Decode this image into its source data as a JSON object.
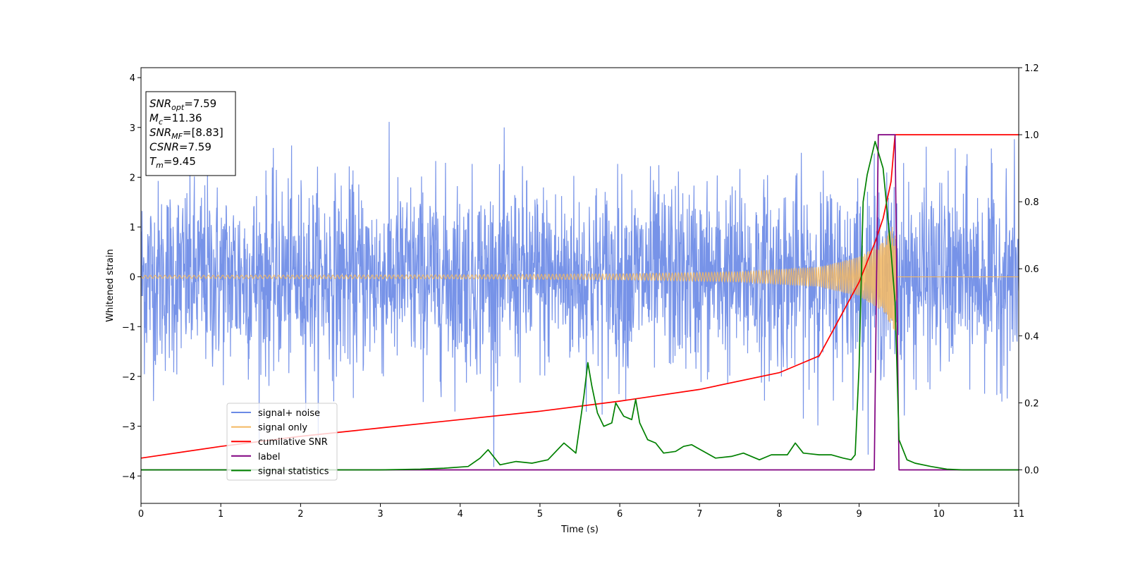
{
  "chart_data": {
    "type": "line",
    "xlabel": "Time (s)",
    "ylabel": "Whitened strain",
    "xlim": [
      0,
      11
    ],
    "ylim": [
      -4.55,
      4.2
    ],
    "y2lim": [
      -0.1,
      1.2
    ],
    "xticks": [
      "0",
      "1",
      "2",
      "3",
      "4",
      "5",
      "6",
      "7",
      "8",
      "9",
      "10",
      "11"
    ],
    "yticks": [
      "−4",
      "−3",
      "−2",
      "−1",
      "0",
      "1",
      "2",
      "3",
      "4"
    ],
    "y2ticks": [
      "0.0",
      "0.2",
      "0.4",
      "0.6",
      "0.8",
      "1.0",
      "1.2"
    ],
    "grid": false,
    "legend_placement": "lower-left",
    "stats_box": {
      "placement": "upper-left",
      "lines": [
        {
          "sym": "SNR",
          "sub": "opt",
          "val": "=7.59"
        },
        {
          "sym": "M",
          "sub": "c",
          "val": "=11.36"
        },
        {
          "sym": "SNR",
          "sub": "MF",
          "val": "=[8.83]"
        },
        {
          "sym": "CSNR",
          "sub": "",
          "val": "=7.59"
        },
        {
          "sym": "T",
          "sub": "m",
          "val": "=9.45"
        }
      ]
    },
    "series": [
      {
        "name": "signal+ noise",
        "axis": "left",
        "color": "#6b8ae6",
        "kind": "noise",
        "sigma": 0.95,
        "x_range": [
          0,
          11
        ]
      },
      {
        "name": "signal only",
        "axis": "left",
        "color": "#f4b860",
        "kind": "chirp",
        "x_range": [
          0,
          9.47
        ],
        "amplitude_points": [
          [
            0,
            0.03
          ],
          [
            4,
            0.04
          ],
          [
            6,
            0.06
          ],
          [
            7.5,
            0.1
          ],
          [
            8.5,
            0.2
          ],
          [
            9.0,
            0.4
          ],
          [
            9.3,
            0.7
          ],
          [
            9.45,
            1.1
          ],
          [
            9.47,
            0
          ]
        ]
      },
      {
        "name": "cumilative SNR",
        "axis": "right",
        "color": "#ff0000",
        "x": [
          0,
          1,
          2,
          3,
          4,
          5,
          6,
          7,
          8,
          8.5,
          9.0,
          9.2,
          9.3,
          9.4,
          9.45,
          9.5,
          11
        ],
        "values": [
          0.035,
          0.07,
          0.1,
          0.125,
          0.15,
          0.175,
          0.205,
          0.24,
          0.29,
          0.34,
          0.56,
          0.68,
          0.75,
          0.86,
          1.0,
          1.0,
          1.0
        ]
      },
      {
        "name": "label",
        "axis": "right",
        "color": "#800080",
        "x": [
          0,
          9.19,
          9.24,
          9.45,
          9.5,
          11
        ],
        "values": [
          0.0,
          0.0,
          1.0,
          1.0,
          0.0,
          0.0
        ]
      },
      {
        "name": "signal statistics",
        "axis": "right",
        "color": "#008000",
        "x": [
          0,
          2,
          3,
          3.5,
          3.8,
          4.1,
          4.25,
          4.35,
          4.5,
          4.7,
          4.9,
          5.1,
          5.3,
          5.4,
          5.45,
          5.55,
          5.6,
          5.65,
          5.72,
          5.8,
          5.9,
          5.95,
          6.05,
          6.15,
          6.2,
          6.25,
          6.35,
          6.45,
          6.55,
          6.7,
          6.8,
          6.9,
          7.05,
          7.2,
          7.4,
          7.55,
          7.75,
          7.9,
          8.1,
          8.2,
          8.3,
          8.5,
          8.65,
          8.8,
          8.9,
          8.95,
          9.0,
          9.05,
          9.1,
          9.2,
          9.3,
          9.4,
          9.45,
          9.5,
          9.6,
          9.7,
          9.9,
          10.1,
          10.3,
          11
        ],
        "values": [
          0.0,
          0.0,
          0.0,
          0.002,
          0.005,
          0.01,
          0.035,
          0.06,
          0.015,
          0.025,
          0.02,
          0.03,
          0.08,
          0.06,
          0.05,
          0.22,
          0.32,
          0.25,
          0.17,
          0.13,
          0.14,
          0.2,
          0.16,
          0.15,
          0.21,
          0.14,
          0.09,
          0.08,
          0.05,
          0.055,
          0.07,
          0.075,
          0.055,
          0.035,
          0.04,
          0.05,
          0.03,
          0.045,
          0.045,
          0.08,
          0.05,
          0.045,
          0.045,
          0.035,
          0.03,
          0.045,
          0.31,
          0.8,
          0.88,
          0.98,
          0.9,
          0.65,
          0.5,
          0.09,
          0.03,
          0.02,
          0.01,
          0.002,
          0.0,
          0.0
        ]
      }
    ]
  }
}
